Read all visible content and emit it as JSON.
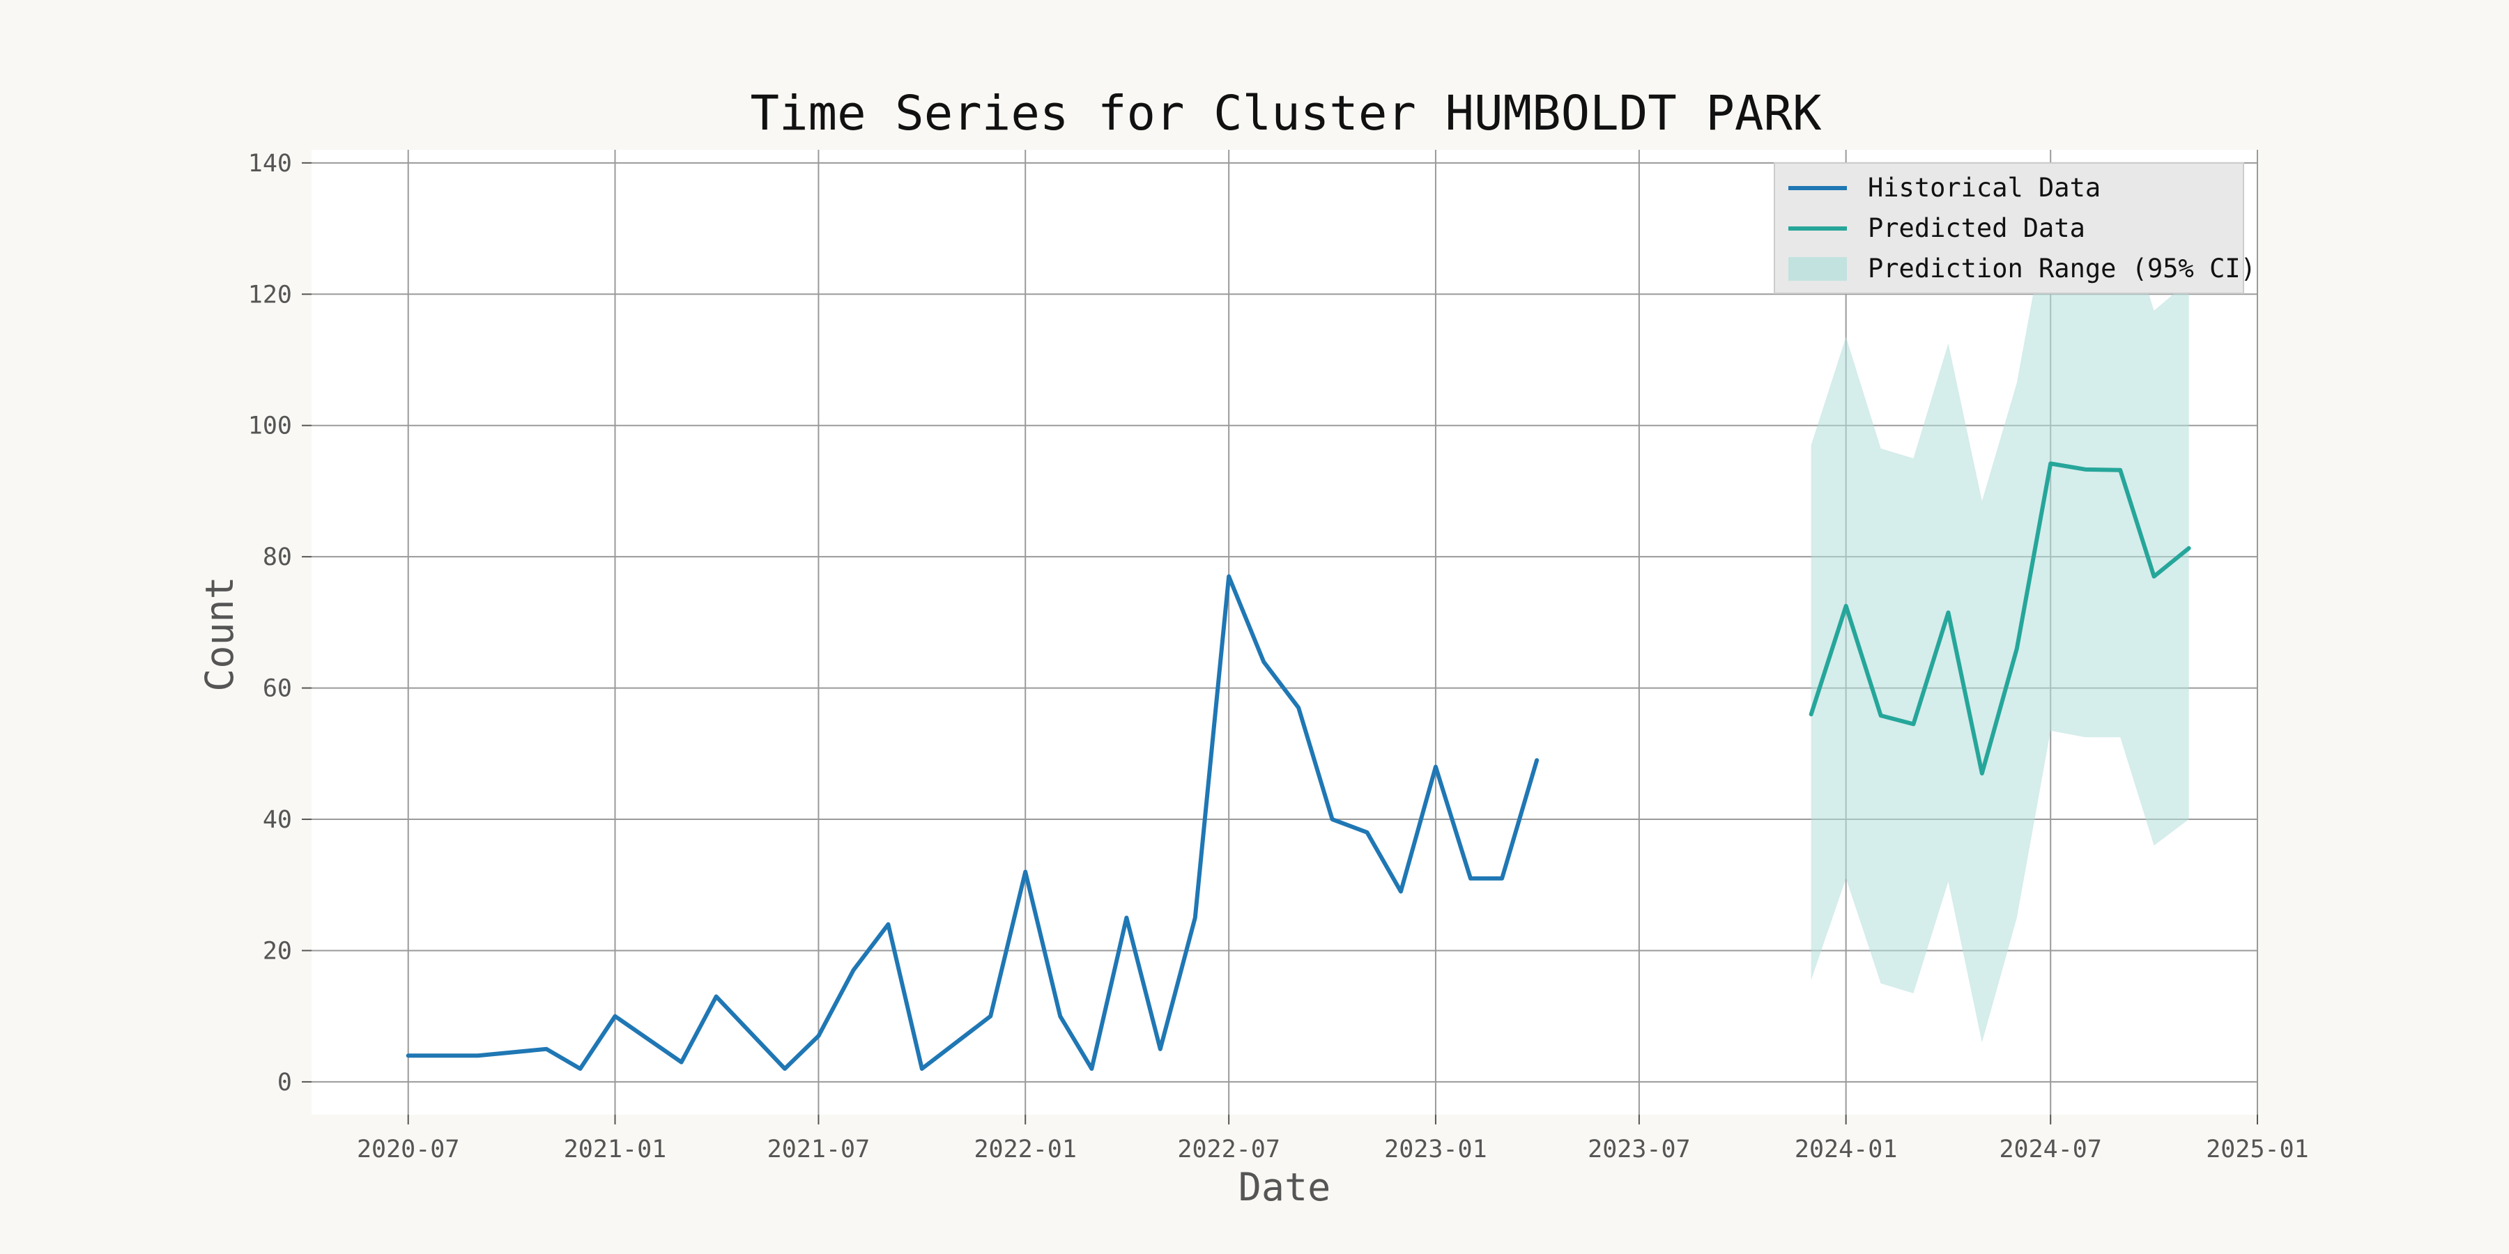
{
  "chart_data": {
    "type": "line",
    "title": "Time Series for Cluster HUMBOLDT PARK",
    "xlabel": "Date",
    "ylabel": "Count",
    "ylim": [
      -5,
      142
    ],
    "xlim": [
      "2020-04-06",
      "2025-01-01"
    ],
    "grid": true,
    "legend_placement": "top-right",
    "x_ticks": [
      "2020-07-01",
      "2021-01-01",
      "2021-07-01",
      "2022-01-01",
      "2022-07-01",
      "2023-01-01",
      "2023-07-01",
      "2024-01-01",
      "2024-07-01",
      "2025-01-01"
    ],
    "x_tick_labels": [
      "2020-07",
      "2021-01",
      "2021-07",
      "2022-01",
      "2022-07",
      "2023-01",
      "2023-07",
      "2024-01",
      "2024-07",
      "2025-01"
    ],
    "y_ticks": [
      0,
      20,
      40,
      60,
      80,
      100,
      120,
      140
    ],
    "y_tick_labels": [
      "0",
      "20",
      "40",
      "60",
      "80",
      "100",
      "120",
      "140"
    ],
    "legend": [
      {
        "label": "Historical Data",
        "kind": "line",
        "color": "#1f77b4"
      },
      {
        "label": "Predicted Data",
        "kind": "line",
        "color": "#26a69a"
      },
      {
        "label": "Prediction Range (95% CI)",
        "kind": "band",
        "color": "#b2dfdb"
      }
    ],
    "series": [
      {
        "name": "Historical Data",
        "color": "#1f77b4",
        "x": [
          "2020-07-01",
          "2020-09-01",
          "2020-11-01",
          "2020-12-01",
          "2021-01-01",
          "2021-03-01",
          "2021-04-01",
          "2021-06-01",
          "2021-07-01",
          "2021-08-01",
          "2021-09-01",
          "2021-10-01",
          "2021-12-01",
          "2022-01-01",
          "2022-02-01",
          "2022-03-01",
          "2022-04-01",
          "2022-05-01",
          "2022-06-01",
          "2022-07-01",
          "2022-08-01",
          "2022-09-01",
          "2022-10-01",
          "2022-11-01",
          "2022-12-01",
          "2023-01-01",
          "2023-02-01",
          "2023-03-01",
          "2023-04-01"
        ],
        "y": [
          4,
          4,
          5,
          2,
          10,
          3,
          13,
          2,
          7,
          17,
          24,
          2,
          10,
          32,
          10,
          2,
          25,
          5,
          25,
          77,
          64,
          57,
          40,
          38,
          29,
          48,
          31,
          31,
          49
        ]
      },
      {
        "name": "Predicted Data",
        "color": "#26a69a",
        "x": [
          "2023-12-01",
          "2024-01-01",
          "2024-02-01",
          "2024-03-01",
          "2024-04-01",
          "2024-05-01",
          "2024-06-01",
          "2024-07-01",
          "2024-08-01",
          "2024-09-01",
          "2024-10-01",
          "2024-11-01"
        ],
        "y": [
          56,
          72.5,
          55.8,
          54.5,
          71.5,
          47,
          66,
          94.2,
          93.3,
          93.2,
          77,
          81.3
        ]
      }
    ],
    "band": {
      "name": "Prediction Range (95% CI)",
      "color": "#b2dfdb",
      "x": [
        "2023-12-01",
        "2024-01-01",
        "2024-02-01",
        "2024-03-01",
        "2024-04-01",
        "2024-05-01",
        "2024-06-01",
        "2024-07-01",
        "2024-08-01",
        "2024-09-01",
        "2024-10-01",
        "2024-11-01"
      ],
      "lower": [
        15.5,
        31,
        15,
        13.5,
        30.5,
        6,
        25,
        53.5,
        52.5,
        52.5,
        36,
        40
      ],
      "upper": [
        97,
        113.5,
        96.5,
        95,
        112.5,
        88.5,
        106.5,
        134.5,
        134,
        134,
        117.5,
        122
      ]
    }
  }
}
